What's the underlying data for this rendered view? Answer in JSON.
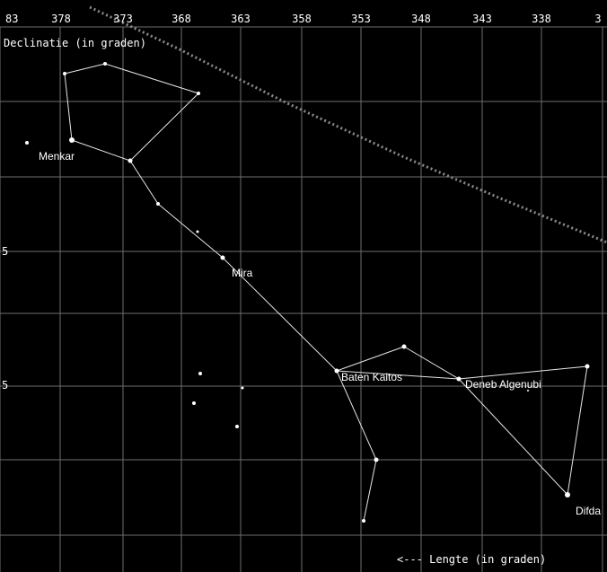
{
  "chart_data": {
    "type": "star-chart",
    "title": "",
    "ylabel": "Declinatie (in graden)",
    "xlabel": "<--- Lengte (in graden)",
    "x_ticks": [
      "83",
      "378",
      "373",
      "368",
      "363",
      "358",
      "353",
      "348",
      "343",
      "338",
      "3"
    ],
    "y_ticks": [
      "",
      "",
      "5",
      "",
      "5",
      ""
    ],
    "stars": [
      {
        "id": "s1",
        "label": ""
      },
      {
        "id": "s2",
        "label": ""
      },
      {
        "id": "s3",
        "label": ""
      },
      {
        "id": "s4",
        "label": "Menkar"
      },
      {
        "id": "s5",
        "label": ""
      },
      {
        "id": "s6",
        "label": ""
      },
      {
        "id": "s7",
        "label": ""
      },
      {
        "id": "s8",
        "label": "Mira"
      },
      {
        "id": "s9",
        "label": "Baten Kaitos"
      },
      {
        "id": "s10",
        "label": ""
      },
      {
        "id": "s11",
        "label": "Deneb Algenubi"
      },
      {
        "id": "s12",
        "label": ""
      },
      {
        "id": "s13",
        "label": "Difda"
      },
      {
        "id": "s14",
        "label": ""
      },
      {
        "id": "s15",
        "label": ""
      },
      {
        "id": "s16",
        "label": ""
      },
      {
        "id": "s17",
        "label": ""
      },
      {
        "id": "s18",
        "label": ""
      },
      {
        "id": "s19",
        "label": ""
      },
      {
        "id": "s20",
        "label": ""
      }
    ]
  }
}
